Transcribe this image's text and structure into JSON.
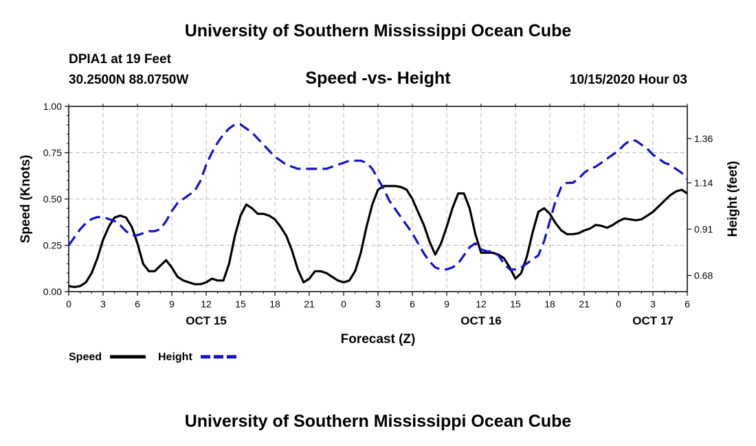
{
  "header": {
    "title": "University of Southern Mississippi Ocean Cube",
    "station": "DPIA1 at 19 Feet",
    "coords": "30.2500N 88.0750W",
    "subtitle": "Speed -vs- Height",
    "date": "10/15/2020 Hour 03"
  },
  "footer": {
    "title": "University of Southern Mississippi Ocean Cube"
  },
  "chart_data": {
    "type": "line",
    "title": "Speed -vs- Height",
    "xlabel": "Forecast (Z)",
    "ylabel": "Speed (Knots)",
    "y2label": "Height (feet)",
    "xlim": [
      0,
      54
    ],
    "ylim": [
      0,
      1.0
    ],
    "y2lim": [
      0.6,
      1.52
    ],
    "x_ticks": [
      0,
      3,
      6,
      9,
      12,
      15,
      18,
      21,
      24,
      27,
      30,
      33,
      36,
      39,
      42,
      45,
      48,
      51,
      54
    ],
    "x_tick_labels": [
      "0",
      "3",
      "6",
      "9",
      "12",
      "15",
      "18",
      "21",
      "0",
      "3",
      "6",
      "9",
      "12",
      "15",
      "18",
      "21",
      "0",
      "3",
      "6"
    ],
    "y_ticks": [
      0,
      0.25,
      0.5,
      0.75,
      1.0
    ],
    "y_tick_labels": [
      "0.00",
      "0.25",
      "0.50",
      "0.75",
      "1.00"
    ],
    "y2_ticks": [
      0.68,
      0.91,
      1.14,
      1.36
    ],
    "y2_tick_labels": [
      "0.68",
      "0.91",
      "1.14",
      "1.36"
    ],
    "day_labels": [
      {
        "x": 12,
        "label": "OCT 15"
      },
      {
        "x": 36,
        "label": "OCT 16"
      },
      {
        "x": 51,
        "label": "OCT 17"
      }
    ],
    "grid": true,
    "legend": "bottom-left",
    "series": [
      {
        "name": "Speed",
        "axis": "left",
        "color": "#000000",
        "style": "solid",
        "x": [
          0,
          0.5,
          1,
          1.5,
          2,
          2.5,
          3,
          3.5,
          4,
          4.5,
          5,
          5.5,
          6,
          6.5,
          7,
          7.5,
          8,
          8.5,
          9,
          9.5,
          10,
          10.5,
          11,
          11.5,
          12,
          12.5,
          13,
          13.5,
          14,
          14.5,
          15,
          15.5,
          16,
          16.5,
          17,
          17.5,
          18,
          18.5,
          19,
          19.5,
          20,
          20.5,
          21,
          21.5,
          22,
          22.5,
          23,
          23.5,
          24,
          24.5,
          25,
          25.5,
          26,
          26.5,
          27,
          27.5,
          28,
          28.5,
          29,
          29.5,
          30,
          30.5,
          31,
          31.5,
          32,
          32.5,
          33,
          33.5,
          34,
          34.5,
          35,
          35.5,
          36,
          36.5,
          37,
          37.5,
          38,
          38.5,
          39,
          39.5,
          40,
          40.5,
          41,
          41.5,
          42,
          42.5,
          43,
          43.5,
          44,
          44.5,
          45,
          45.5,
          46,
          46.5,
          47,
          47.5,
          48,
          48.5,
          49,
          49.5,
          50,
          50.5,
          51,
          51.5,
          52,
          52.5,
          53,
          53.5,
          54
        ],
        "values": [
          0.03,
          0.025,
          0.03,
          0.05,
          0.1,
          0.18,
          0.28,
          0.35,
          0.4,
          0.41,
          0.4,
          0.35,
          0.26,
          0.15,
          0.11,
          0.11,
          0.14,
          0.17,
          0.13,
          0.08,
          0.06,
          0.05,
          0.04,
          0.04,
          0.05,
          0.07,
          0.06,
          0.06,
          0.15,
          0.3,
          0.41,
          0.47,
          0.45,
          0.42,
          0.42,
          0.41,
          0.39,
          0.35,
          0.3,
          0.22,
          0.12,
          0.05,
          0.07,
          0.11,
          0.11,
          0.1,
          0.08,
          0.06,
          0.05,
          0.06,
          0.11,
          0.21,
          0.35,
          0.47,
          0.55,
          0.57,
          0.57,
          0.57,
          0.565,
          0.55,
          0.5,
          0.43,
          0.36,
          0.27,
          0.2,
          0.26,
          0.35,
          0.45,
          0.53,
          0.53,
          0.45,
          0.31,
          0.21,
          0.21,
          0.21,
          0.2,
          0.18,
          0.13,
          0.07,
          0.1,
          0.19,
          0.32,
          0.43,
          0.45,
          0.42,
          0.37,
          0.33,
          0.31,
          0.31,
          0.315,
          0.33,
          0.34,
          0.36,
          0.355,
          0.345,
          0.36,
          0.38,
          0.395,
          0.39,
          0.385,
          0.39,
          0.41,
          0.43,
          0.46,
          0.49,
          0.52,
          0.54,
          0.55,
          0.53
        ]
      },
      {
        "name": "Height",
        "axis": "right",
        "color": "#1111c8",
        "style": "dashed",
        "x": [
          0,
          0.5,
          1,
          1.5,
          2,
          2.5,
          3,
          3.5,
          4,
          4.5,
          5,
          5.5,
          6,
          6.5,
          7,
          7.5,
          8,
          8.5,
          9,
          9.5,
          10,
          10.5,
          11,
          11.5,
          12,
          12.5,
          13,
          13.5,
          14,
          14.5,
          15,
          15.5,
          16,
          16.5,
          17,
          17.5,
          18,
          18.5,
          19,
          19.5,
          20,
          20.5,
          21,
          21.5,
          22,
          22.5,
          23,
          23.5,
          24,
          24.5,
          25,
          25.5,
          26,
          26.5,
          27,
          27.5,
          28,
          28.5,
          29,
          29.5,
          30,
          30.5,
          31,
          31.5,
          32,
          32.5,
          33,
          33.5,
          34,
          34.5,
          35,
          35.5,
          36,
          36.5,
          37,
          37.5,
          38,
          38.5,
          39,
          39.5,
          40,
          40.5,
          41,
          41.5,
          42,
          42.5,
          43,
          43.5,
          44,
          44.5,
          45,
          45.5,
          46,
          46.5,
          47,
          47.5,
          48,
          48.5,
          49,
          49.5,
          50,
          50.5,
          51,
          51.5,
          52,
          52.5,
          53,
          53.5,
          54
        ],
        "values": [
          0.83,
          0.87,
          0.91,
          0.94,
          0.96,
          0.97,
          0.97,
          0.96,
          0.95,
          0.93,
          0.9,
          0.88,
          0.88,
          0.89,
          0.9,
          0.9,
          0.91,
          0.95,
          1.0,
          1.04,
          1.06,
          1.08,
          1.1,
          1.15,
          1.23,
          1.29,
          1.34,
          1.38,
          1.41,
          1.43,
          1.43,
          1.41,
          1.39,
          1.36,
          1.33,
          1.3,
          1.27,
          1.25,
          1.23,
          1.22,
          1.21,
          1.21,
          1.21,
          1.21,
          1.21,
          1.21,
          1.22,
          1.23,
          1.24,
          1.25,
          1.25,
          1.25,
          1.24,
          1.21,
          1.16,
          1.11,
          1.05,
          1.01,
          0.97,
          0.93,
          0.89,
          0.84,
          0.79,
          0.75,
          0.72,
          0.71,
          0.71,
          0.72,
          0.74,
          0.78,
          0.82,
          0.84,
          0.81,
          0.8,
          0.8,
          0.78,
          0.74,
          0.71,
          0.71,
          0.72,
          0.74,
          0.76,
          0.78,
          0.85,
          0.95,
          1.05,
          1.12,
          1.14,
          1.14,
          1.16,
          1.19,
          1.21,
          1.22,
          1.24,
          1.26,
          1.28,
          1.3,
          1.33,
          1.35,
          1.35,
          1.33,
          1.31,
          1.28,
          1.26,
          1.24,
          1.23,
          1.21,
          1.19,
          1.16
        ]
      }
    ]
  }
}
